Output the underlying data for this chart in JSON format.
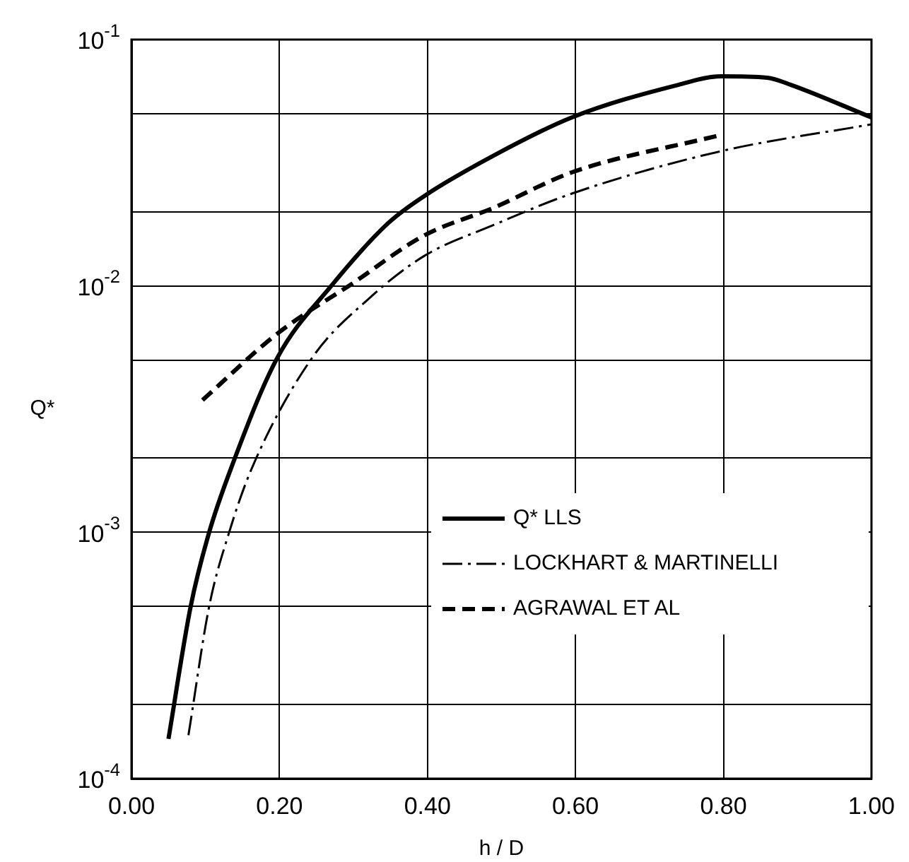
{
  "chart_data": {
    "type": "line",
    "xlabel": "h / D",
    "ylabel": "Q*",
    "xlim": [
      0,
      1
    ],
    "xticks": [
      {
        "value": 0,
        "label": "0.00"
      },
      {
        "value": 0.2,
        "label": "0.20"
      },
      {
        "value": 0.4,
        "label": "0.40"
      },
      {
        "value": 0.6,
        "label": "0.60"
      },
      {
        "value": 0.8,
        "label": "0.80"
      },
      {
        "value": 1,
        "label": "1.00"
      }
    ],
    "ylim": [
      0.0001,
      0.1
    ],
    "log": "y",
    "yticks": [
      {
        "value": 0.0001,
        "label": "10$^{-4}$"
      },
      {
        "value": 0.0002,
        "label": null
      },
      {
        "value": 0.0005,
        "label": null
      },
      {
        "value": 0.001,
        "label": "10$^{-3}$"
      },
      {
        "value": 0.002,
        "label": null
      },
      {
        "value": 0.005,
        "label": null
      },
      {
        "value": 0.01,
        "label": "10$^{-2}$"
      },
      {
        "value": 0.02,
        "label": null
      },
      {
        "value": 0.05,
        "label": null
      },
      {
        "value": 0.1,
        "label": "10$^{-1}$"
      }
    ],
    "grid": true,
    "legend": "bottom right",
    "marker": "none",
    "series": [
      {
        "name": "Q* LLS",
        "color": "#000000",
        "line_style": "solid",
        "x": [
          0.05,
          0.08,
          0.105,
          0.134,
          0.197,
          0.27,
          0.347,
          0.395,
          0.49,
          0.595,
          0.739,
          0.796,
          0.859,
          0.891,
          1.0
        ],
        "values": [
          0.000145,
          0.0005,
          0.001,
          0.0018,
          0.0051,
          0.01,
          0.018,
          0.0231,
          0.0339,
          0.0483,
          0.0655,
          0.0709,
          0.07,
          0.0655,
          0.0483
        ]
      },
      {
        "name": "LOCKHART & MARTINELLI",
        "color": "#000000",
        "line_style": "dashdot",
        "x": [
          0.077,
          0.105,
          0.132,
          0.162,
          0.244,
          0.323,
          0.395,
          0.49,
          0.595,
          0.796,
          1.0
        ],
        "values": [
          0.00015,
          0.0005,
          0.001,
          0.0018,
          0.0051,
          0.009,
          0.0132,
          0.0177,
          0.0237,
          0.0352,
          0.0453
        ]
      },
      {
        "name": "AGRAWAL ET AL",
        "color": "#000000",
        "line_style": "dashed",
        "x": [
          0.096,
          0.197,
          0.3,
          0.395,
          0.49,
          0.595,
          0.792
        ],
        "values": [
          0.00344,
          0.0064,
          0.0103,
          0.016,
          0.0208,
          0.0289,
          0.0407
        ]
      }
    ]
  }
}
